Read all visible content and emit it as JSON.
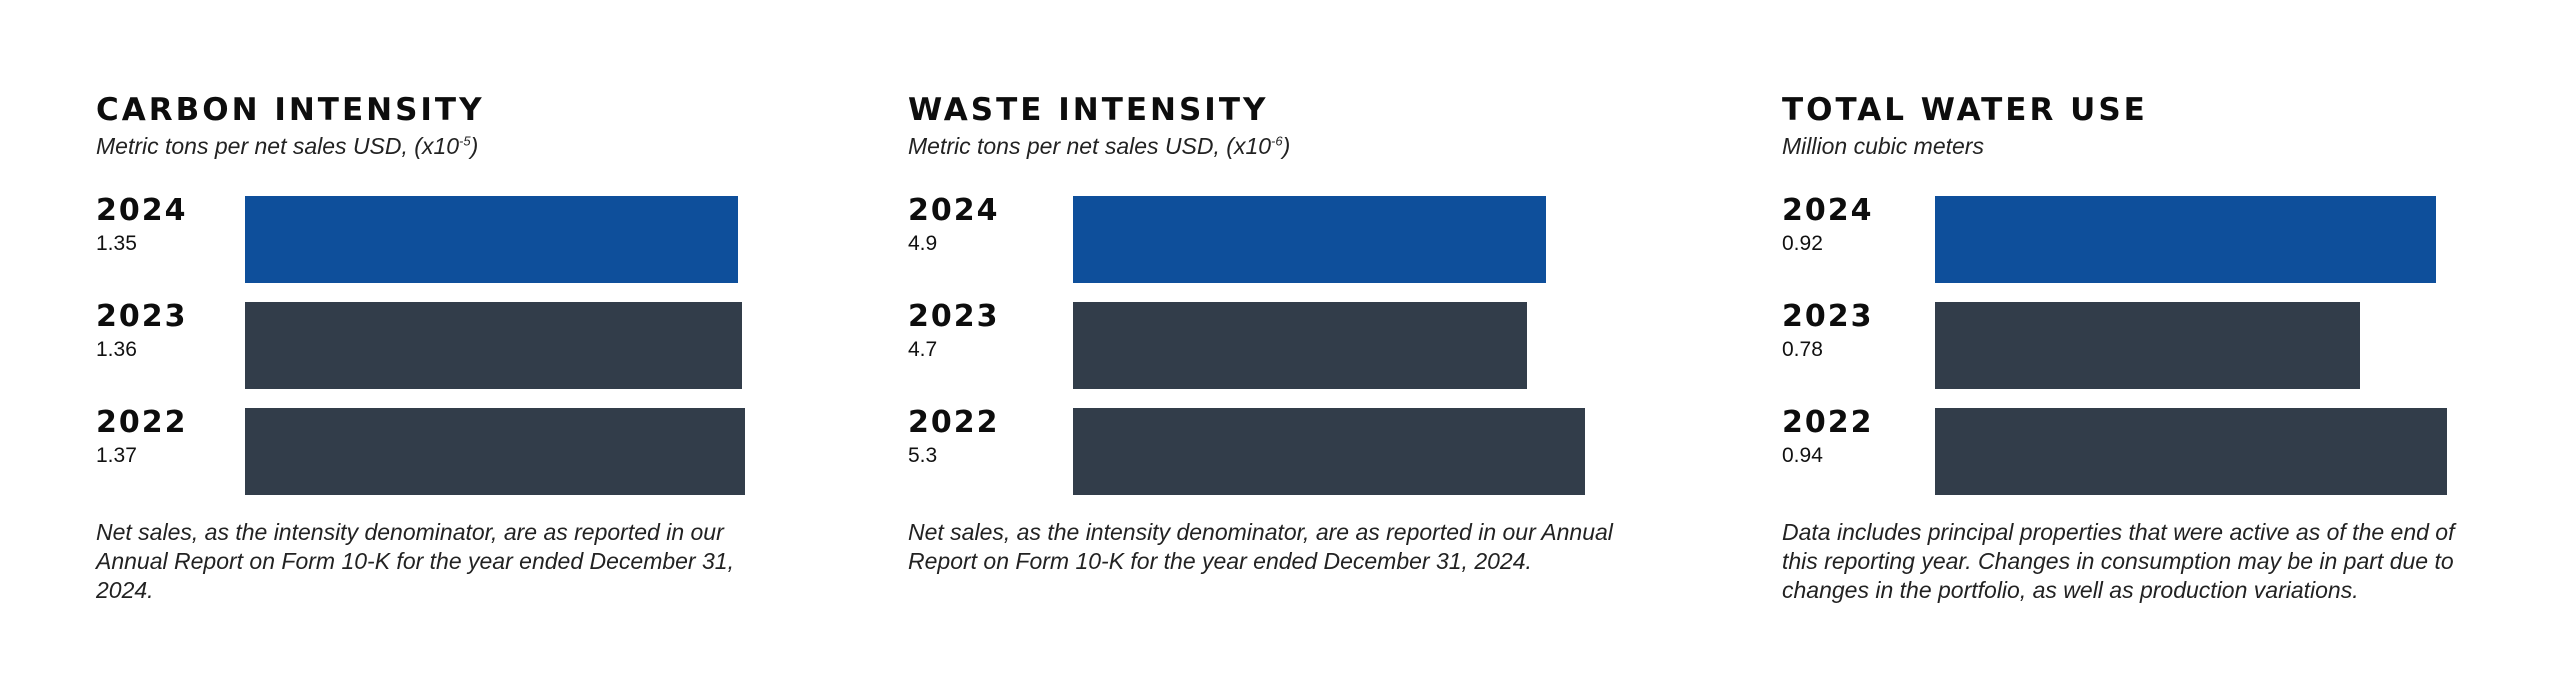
{
  "colors": {
    "current_year": "#0e4f9b",
    "prior_years": "#323d4a"
  },
  "chart_data": [
    {
      "type": "bar",
      "orientation": "horizontal",
      "title": "CARBON INTENSITY",
      "subtitle_main": "Metric tons per net sales USD, (x10",
      "subtitle_exp": "-5",
      "subtitle_end": ")",
      "categories": [
        "2024",
        "2023",
        "2022"
      ],
      "values": [
        1.35,
        1.36,
        1.37
      ],
      "value_labels": [
        "1.35",
        "1.36",
        "1.37"
      ],
      "xlim": [
        0,
        1.44
      ],
      "footnote": "Net sales, as the intensity denominator, are as reported in our Annual Report on Form 10-K for the year ended December 31, 2024."
    },
    {
      "type": "bar",
      "orientation": "horizontal",
      "title": "WASTE INTENSITY",
      "subtitle_main": "Metric tons per net sales USD, (x10",
      "subtitle_exp": "-6",
      "subtitle_end": ")",
      "categories": [
        "2024",
        "2023",
        "2022"
      ],
      "values": [
        4.9,
        4.7,
        5.3
      ],
      "value_labels": [
        "4.9",
        "4.7",
        "5.3"
      ],
      "xlim": [
        0,
        5.3
      ],
      "footnote": "Net sales, as the intensity denominator, are as reported in our Annual Report on Form 10-K for the year ended December 31, 2024."
    },
    {
      "type": "bar",
      "orientation": "horizontal",
      "title": "TOTAL WATER USE",
      "subtitle_main": "Million cubic meters",
      "subtitle_exp": "",
      "subtitle_end": "",
      "categories": [
        "2024",
        "2023",
        "2022"
      ],
      "values": [
        0.92,
        0.78,
        0.94
      ],
      "value_labels": [
        "0.92",
        "0.78",
        "0.94"
      ],
      "xlim": [
        0,
        0.94
      ],
      "footnote": "Data includes principal properties that were active as of the end of this reporting year. Changes in consumption may be in part due to changes in the portfolio, as well as production variations."
    }
  ]
}
